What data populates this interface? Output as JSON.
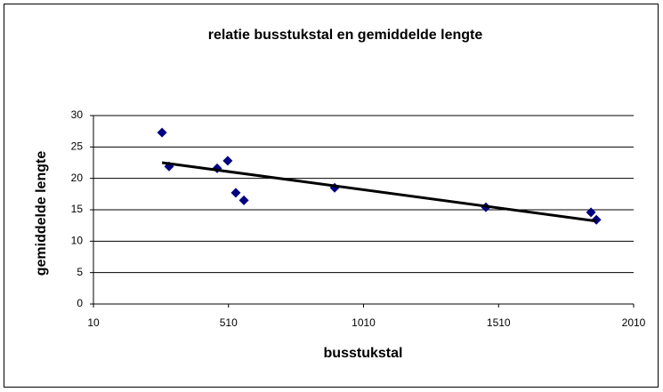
{
  "chart_data": {
    "type": "scatter",
    "title": "relatie  busstukstal en gemiddelde lengte",
    "x_label": "busstukstal",
    "y_label": "gemiddelde lengte",
    "x": [
      264,
      290,
      468,
      507,
      537,
      567,
      903,
      1463,
      1852,
      1872
    ],
    "values": [
      27.3,
      21.9,
      21.6,
      22.8,
      17.7,
      16.5,
      18.5,
      15.4,
      14.6,
      13.4
    ],
    "color": "#000080",
    "trendline": {
      "x": [
        264,
        1872
      ],
      "values": [
        22.5,
        13.2
      ],
      "color": "#000000"
    },
    "xlim": [
      10,
      2010
    ],
    "xticks": [
      10,
      510,
      1010,
      1510,
      2010
    ],
    "ylim": [
      0,
      30
    ],
    "yticks": [
      0,
      5,
      10,
      15,
      20,
      25,
      30
    ],
    "grid": true
  }
}
